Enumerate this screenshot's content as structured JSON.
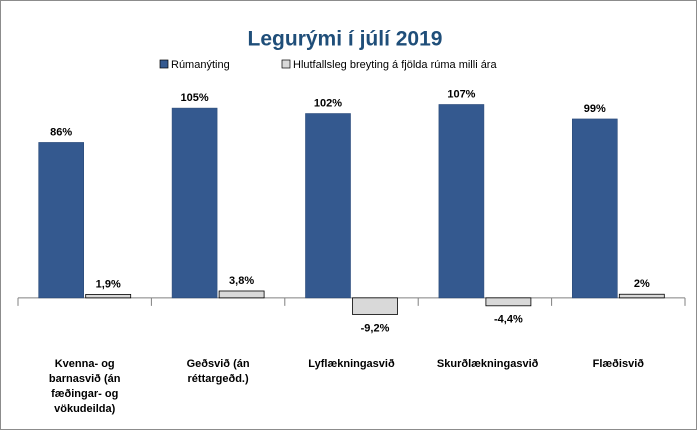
{
  "chart_data": {
    "type": "bar",
    "title": "Legurými  í  júlí 2019",
    "categories": [
      "Kvenna- og barnasvið  (án fæðingar- og vökudeilda)",
      "Geðsvið (án réttargeðd.)",
      "Lyflækningasvið",
      "Skurðlækningasvið",
      "Flæðisvið"
    ],
    "series": [
      {
        "name": "Rúmanýting",
        "color": "#34598f",
        "values": [
          86,
          105,
          102,
          107,
          99
        ],
        "value_labels": [
          "86%",
          "105%",
          "102%",
          "107%",
          "99%"
        ]
      },
      {
        "name": "Hlutfallsleg breyting á fjölda rúma milli ára",
        "color": "#d9d9d9",
        "values": [
          1.9,
          3.8,
          -9.2,
          -4.4,
          2
        ],
        "value_labels": [
          "1,9%",
          "3,8%",
          "-9,2%",
          "-4,4%",
          "2%"
        ]
      }
    ],
    "ylim": [
      -20,
      120
    ],
    "legend": "top"
  }
}
